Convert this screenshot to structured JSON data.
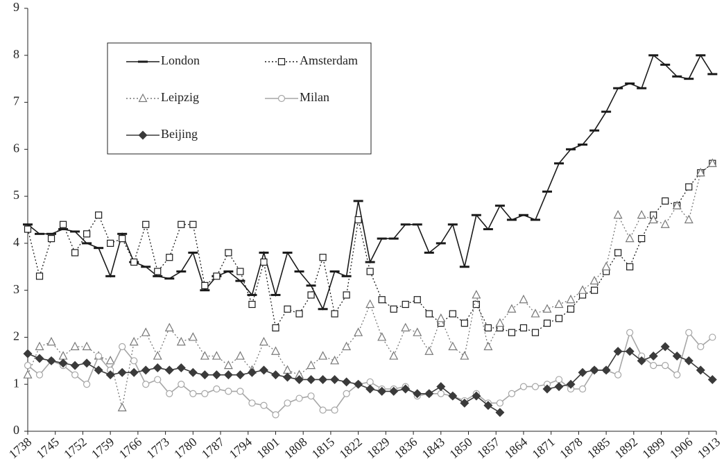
{
  "chart_data": {
    "type": "line",
    "x": [
      1738,
      1741,
      1744,
      1747,
      1750,
      1753,
      1756,
      1759,
      1762,
      1765,
      1768,
      1771,
      1774,
      1777,
      1780,
      1783,
      1786,
      1789,
      1792,
      1795,
      1798,
      1801,
      1804,
      1807,
      1810,
      1813,
      1816,
      1819,
      1822,
      1825,
      1828,
      1831,
      1834,
      1837,
      1840,
      1843,
      1846,
      1849,
      1852,
      1855,
      1858,
      1861,
      1864,
      1867,
      1870,
      1873,
      1876,
      1879,
      1882,
      1885,
      1888,
      1891,
      1894,
      1897,
      1900,
      1903,
      1906,
      1909,
      1912
    ],
    "xlim": [
      1738,
      1913
    ],
    "xticks": [
      1738,
      1745,
      1752,
      1759,
      1766,
      1773,
      1780,
      1787,
      1794,
      1801,
      1808,
      1815,
      1822,
      1829,
      1836,
      1843,
      1850,
      1857,
      1864,
      1871,
      1878,
      1885,
      1892,
      1899,
      1906,
      1913
    ],
    "ylim": [
      0,
      9
    ],
    "yticks": [
      0,
      1,
      2,
      3,
      4,
      5,
      6,
      7,
      8,
      9
    ],
    "legend": "upper left",
    "series": [
      {
        "name": "London",
        "color": "#1a1a1a",
        "marker": "dash",
        "line_style": "solid",
        "values": [
          4.4,
          4.2,
          4.2,
          4.3,
          4.25,
          4.0,
          3.9,
          3.3,
          4.2,
          3.6,
          3.5,
          3.3,
          3.25,
          3.4,
          3.8,
          3.0,
          3.3,
          3.4,
          3.2,
          2.9,
          3.8,
          2.9,
          3.8,
          3.4,
          3.1,
          2.6,
          3.4,
          3.3,
          4.9,
          3.6,
          4.1,
          4.1,
          4.4,
          4.4,
          3.8,
          4.0,
          4.4,
          3.5,
          4.6,
          4.3,
          4.8,
          4.5,
          4.6,
          4.5,
          5.1,
          5.7,
          6.0,
          6.1,
          6.4,
          6.8,
          7.3,
          7.4,
          7.3,
          8.0,
          7.8,
          7.55,
          7.5,
          8.0,
          7.6
        ]
      },
      {
        "name": "Amsterdam",
        "color": "#1a1a1a",
        "marker": "square",
        "line_style": "dotted",
        "values": [
          4.3,
          3.3,
          4.1,
          4.4,
          3.8,
          4.2,
          4.6,
          4.0,
          4.1,
          3.6,
          4.4,
          3.4,
          3.7,
          4.4,
          4.4,
          3.1,
          3.3,
          3.8,
          3.4,
          2.7,
          3.6,
          2.2,
          2.6,
          2.5,
          2.9,
          3.7,
          2.5,
          2.9,
          4.5,
          3.4,
          2.8,
          2.6,
          2.7,
          2.8,
          2.5,
          2.3,
          2.5,
          2.3,
          2.7,
          2.2,
          2.2,
          2.1,
          2.2,
          2.1,
          2.3,
          2.4,
          2.6,
          2.9,
          3.0,
          3.4,
          3.8,
          3.5,
          4.1,
          4.6,
          4.9,
          4.8,
          5.2,
          5.5,
          5.7
        ]
      },
      {
        "name": "Leipzig",
        "color": "#777777",
        "marker": "triangle",
        "line_style": "dotted",
        "values": [
          1.2,
          1.8,
          1.9,
          1.6,
          1.8,
          1.8,
          1.6,
          1.5,
          0.5,
          1.9,
          2.1,
          1.6,
          2.2,
          1.9,
          2.0,
          1.6,
          1.6,
          1.4,
          1.6,
          1.3,
          1.9,
          1.7,
          1.3,
          1.2,
          1.4,
          1.6,
          1.5,
          1.8,
          2.1,
          2.7,
          2.0,
          1.6,
          2.2,
          2.1,
          1.7,
          2.4,
          1.8,
          1.6,
          2.9,
          1.8,
          2.3,
          2.6,
          2.8,
          2.5,
          2.6,
          2.7,
          2.8,
          3.0,
          3.2,
          3.5,
          4.6,
          4.1,
          4.6,
          4.5,
          4.4,
          4.8,
          4.5,
          5.5,
          5.7
        ]
      },
      {
        "name": "Milan",
        "color": "#a6a6a6",
        "marker": "circle",
        "line_style": "solid",
        "values": [
          1.4,
          1.2,
          1.5,
          1.4,
          1.2,
          1.0,
          1.6,
          1.3,
          1.8,
          1.5,
          1.0,
          1.1,
          0.8,
          1.0,
          0.8,
          0.8,
          0.9,
          0.85,
          0.85,
          0.6,
          0.55,
          0.35,
          0.6,
          0.7,
          0.75,
          0.45,
          0.45,
          0.8,
          1.0,
          1.05,
          0.9,
          0.9,
          0.95,
          0.75,
          0.8,
          0.8,
          0.75,
          0.65,
          0.8,
          0.6,
          0.6,
          0.8,
          0.95,
          0.95,
          1.0,
          1.1,
          0.9,
          0.9,
          1.3,
          1.3,
          1.2,
          2.1,
          1.6,
          1.4,
          1.4,
          1.2,
          2.1,
          1.8,
          2.0
        ]
      },
      {
        "name": "Beijing",
        "color": "#3a3a3a",
        "marker": "diamond",
        "line_style": "solid",
        "values": [
          1.65,
          1.55,
          1.5,
          1.45,
          1.4,
          1.45,
          1.3,
          1.2,
          1.25,
          1.25,
          1.3,
          1.35,
          1.3,
          1.35,
          1.25,
          1.2,
          1.2,
          1.2,
          1.2,
          1.25,
          1.3,
          1.2,
          1.15,
          1.1,
          1.1,
          1.1,
          1.1,
          1.05,
          1.0,
          0.9,
          0.85,
          0.85,
          0.9,
          0.8,
          0.8,
          0.95,
          0.75,
          0.6,
          0.75,
          0.55,
          0.4,
          null,
          null,
          null,
          0.9,
          0.95,
          1.0,
          1.25,
          1.3,
          1.3,
          1.7,
          1.7,
          1.5,
          1.6,
          1.8,
          1.6,
          1.5,
          1.3,
          1.1
        ]
      }
    ]
  }
}
